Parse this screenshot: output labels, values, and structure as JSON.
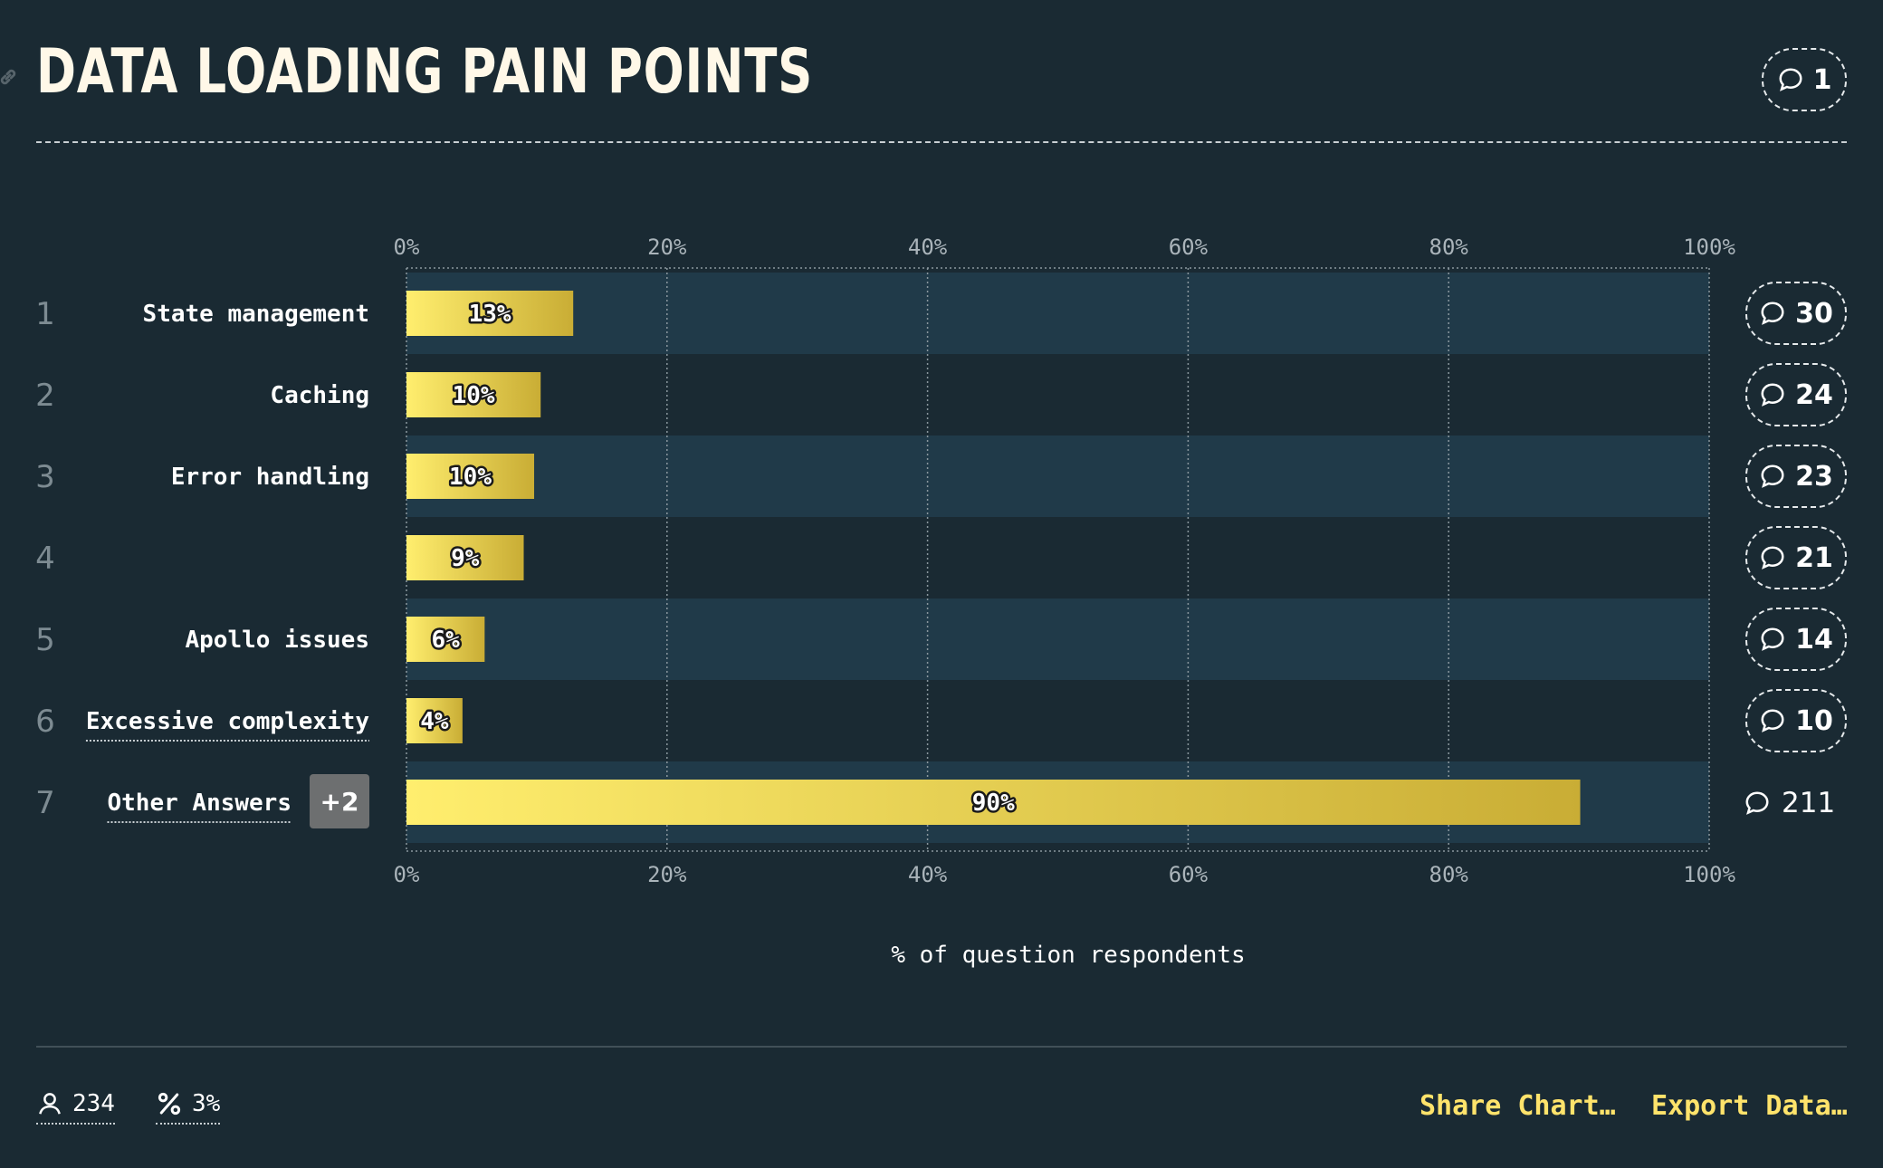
{
  "title": "DATA LOADING PAIN POINTS",
  "header_comments": "1",
  "colors": {
    "background": "#1a2a33",
    "row_band": "#203a49",
    "bar_start": "#ffee6e",
    "bar_end": "#c9ad35",
    "accent": "#ffe36b"
  },
  "icons": {
    "comment": "comment-bubble-icon",
    "users": "user-icon",
    "percent": "percent-icon",
    "link": "link-icon"
  },
  "chart_data": {
    "type": "bar",
    "orientation": "horizontal",
    "xlabel": "% of question respondents",
    "xlim": [
      0,
      100
    ],
    "ticks": [
      "0%",
      "20%",
      "40%",
      "60%",
      "80%",
      "100%"
    ],
    "grid": true,
    "categories": [
      "State management",
      "Caching",
      "Error handling",
      "",
      "Apollo issues",
      "Excessive complexity",
      "Other Answers"
    ],
    "ranks": [
      "1",
      "2",
      "3",
      "4",
      "5",
      "6",
      "7"
    ],
    "values": [
      12.8,
      10.3,
      9.8,
      9,
      6,
      4.3,
      90.1
    ],
    "value_labels": [
      "13%",
      "10%",
      "10%",
      "9%",
      "6%",
      "4%",
      "90%"
    ],
    "comment_counts": [
      "30",
      "24",
      "23",
      "21",
      "14",
      "10",
      "211"
    ]
  },
  "other_answers_badge": "+2",
  "footer": {
    "respondents": "234",
    "percent": "3%",
    "share_label": "Share Chart…",
    "export_label": "Export Data…"
  }
}
